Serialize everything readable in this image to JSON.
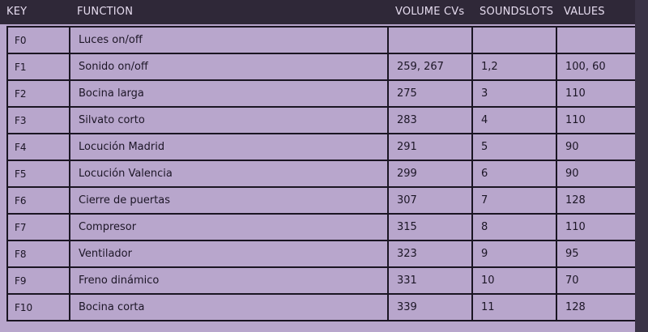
{
  "headers": {
    "key": "KEY",
    "function": "FUNCTION",
    "volume": "VOLUME CVs",
    "soundslots": "SOUNDSLOTS",
    "values": "VALUES"
  },
  "rows": [
    {
      "key": "F0",
      "function": "Luces on/off",
      "volume": "",
      "slots": "",
      "values": ""
    },
    {
      "key": "F1",
      "function": "Sonido on/off",
      "volume": "259, 267",
      "slots": "1,2",
      "values": "100, 60"
    },
    {
      "key": "F2",
      "function": "Bocina larga",
      "volume": "275",
      "slots": "3",
      "values": "110"
    },
    {
      "key": "F3",
      "function": "Silvato corto",
      "volume": "283",
      "slots": "4",
      "values": "110"
    },
    {
      "key": "F4",
      "function": "Locución Madrid",
      "volume": "291",
      "slots": "5",
      "values": "90"
    },
    {
      "key": "F5",
      "function": "Locución Valencia",
      "volume": "299",
      "slots": "6",
      "values": "90"
    },
    {
      "key": "F6",
      "function": "Cierre de puertas",
      "volume": "307",
      "slots": "7",
      "values": "128"
    },
    {
      "key": "F7",
      "function": "Compresor",
      "volume": "315",
      "slots": "8",
      "values": "110"
    },
    {
      "key": "F8",
      "function": "Ventilador",
      "volume": "323",
      "slots": "9",
      "values": "95"
    },
    {
      "key": "F9",
      "function": "Freno dinámico",
      "volume": "331",
      "slots": "10",
      "values": "70"
    },
    {
      "key": "F10",
      "function": "Bocina corta",
      "volume": "339",
      "slots": "11",
      "values": "128"
    }
  ]
}
